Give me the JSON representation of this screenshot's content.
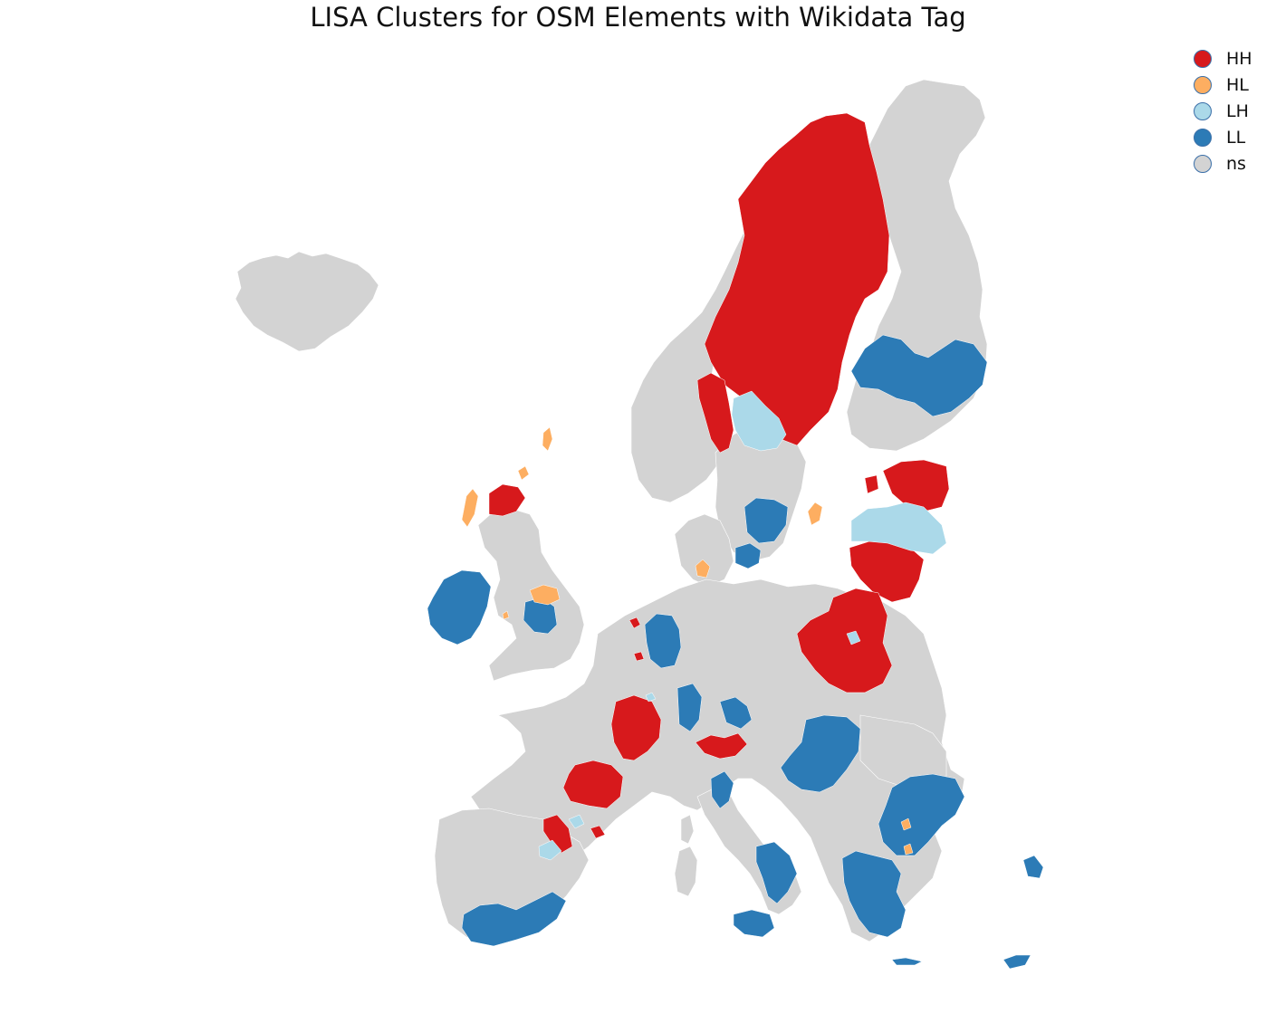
{
  "title": "LISA Clusters for OSM Elements with Wikidata Tag",
  "legend": {
    "items": [
      {
        "label": "HH",
        "color": "#d7191c"
      },
      {
        "label": "HL",
        "color": "#fdae61"
      },
      {
        "label": "LH",
        "color": "#abd9e9"
      },
      {
        "label": "LL",
        "color": "#2c7bb6"
      },
      {
        "label": "ns",
        "color": "#d3d3d3"
      }
    ]
  },
  "colors": {
    "HH": "#d7191c",
    "HL": "#fdae61",
    "LH": "#abd9e9",
    "LL": "#2c7bb6",
    "ns": "#d3d3d3"
  }
}
